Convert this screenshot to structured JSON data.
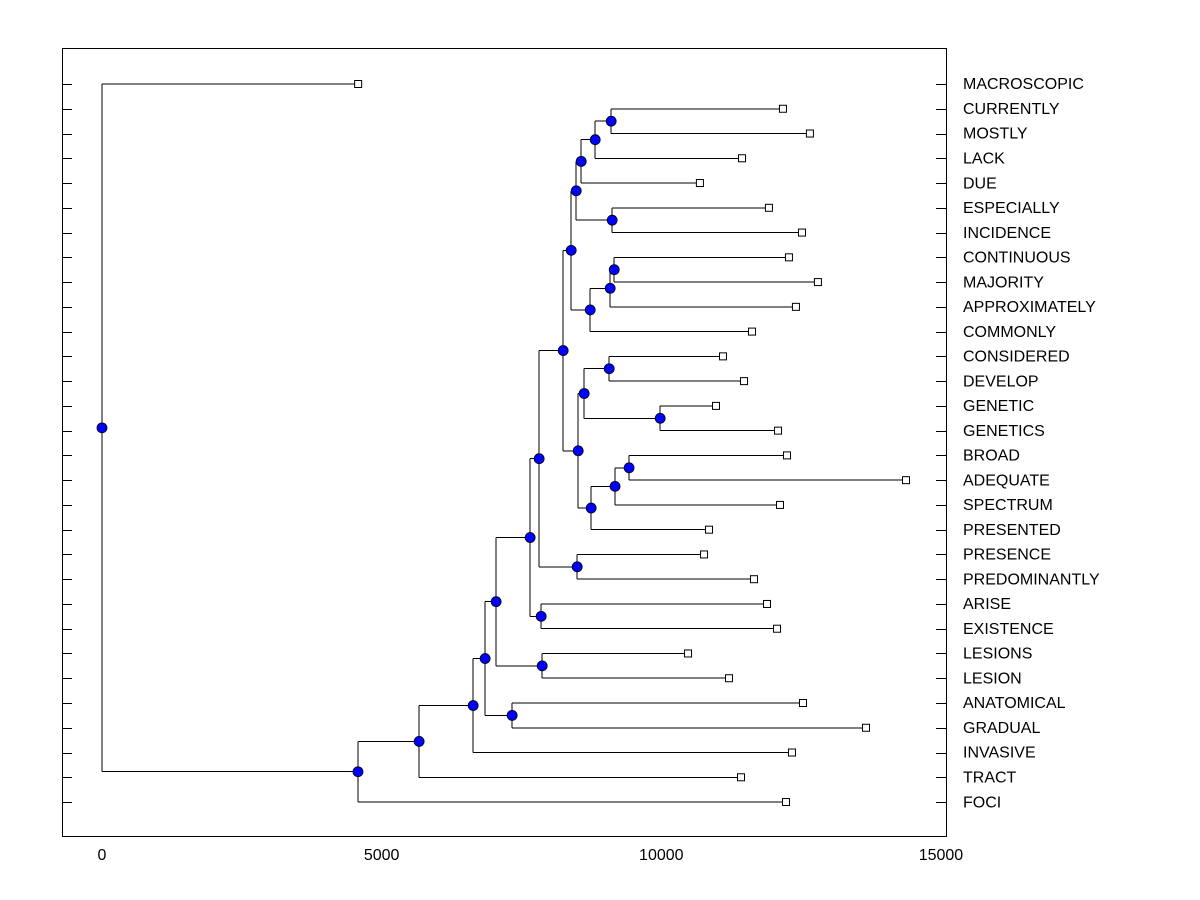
{
  "chart_data": {
    "type": "dendrogram",
    "node_color": "#0000ff",
    "leaf_color": "#ffffff",
    "line_color": "#000000",
    "xlim": [
      -715,
      15090
    ],
    "xticks": [
      0,
      5000,
      10000,
      15000
    ],
    "tree": {
      "value": 0,
      "children": [
        {
          "label": "MACROSCOPIC",
          "value": 4580
        },
        {
          "value": 4577,
          "children": [
            {
              "value": 5670,
              "children": [
                {
                  "value": 6636,
                  "children": [
                    {
                      "value": 6850,
                      "children": [
                        {
                          "value": 7047,
                          "children": [
                            {
                              "value": 7655,
                              "children": [
                                {
                                  "value": 7816,
                                  "children": [
                                    {
                                      "value": 8246,
                                      "children": [
                                        {
                                          "value": 8389,
                                          "children": [
                                            {
                                              "value": 8479,
                                              "children": [
                                                {
                                                  "value": 8568,
                                                  "children": [
                                                    {
                                                      "value": 8818,
                                                      "children": [
                                                        {
                                                          "value": 9104,
                                                          "children": [
                                                            {
                                                              "label": "CURRENTLY",
                                                              "value": 12175
                                                            },
                                                            {
                                                              "label": "MOSTLY",
                                                              "value": 12657
                                                            }
                                                          ]
                                                        },
                                                        {
                                                          "label": "LACK",
                                                          "value": 11443
                                                        }
                                                      ]
                                                    },
                                                    {
                                                      "label": "DUE",
                                                      "value": 10690
                                                    }
                                                  ]
                                                },
                                                {
                                                  "value": 9122,
                                                  "children": [
                                                    {
                                                      "label": "ESPECIALLY",
                                                      "value": 11924
                                                    },
                                                    {
                                                      "label": "INCIDENCE",
                                                      "value": 12515
                                                    }
                                                  ]
                                                }
                                              ]
                                            },
                                            {
                                              "value": 8729,
                                              "children": [
                                                {
                                                  "value": 9086,
                                                  "children": [
                                                    {
                                                      "value": 9158,
                                                      "children": [
                                                        {
                                                          "label": "CONTINUOUS",
                                                          "value": 12282
                                                        },
                                                        {
                                                          "label": "MAJORITY",
                                                          "value": 12800
                                                        }
                                                      ]
                                                    },
                                                    {
                                                      "label": "APPROXIMATELY",
                                                      "value": 12407
                                                    }
                                                  ]
                                                },
                                                {
                                                  "label": "COMMONLY",
                                                  "value": 11622
                                                }
                                              ]
                                            }
                                          ]
                                        },
                                        {
                                          "value": 8514,
                                          "children": [
                                            {
                                              "value": 8621,
                                              "children": [
                                                {
                                                  "value": 9068,
                                                  "children": [
                                                    {
                                                      "label": "CONSIDERED",
                                                      "value": 11103
                                                    },
                                                    {
                                                      "label": "DEVELOP",
                                                      "value": 11479
                                                    }
                                                  ]
                                                },
                                                {
                                                  "value": 9980,
                                                  "children": [
                                                    {
                                                      "label": "GENETIC",
                                                      "value": 10978
                                                    },
                                                    {
                                                      "label": "GENETICS",
                                                      "value": 12087
                                                    }
                                                  ]
                                                }
                                              ]
                                            },
                                            {
                                              "value": 8746,
                                              "children": [
                                                {
                                                  "value": 9173,
                                                  "children": [
                                                    {
                                                      "value": 9424,
                                                      "children": [
                                                        {
                                                          "label": "BROAD",
                                                          "value": 12247
                                                        },
                                                        {
                                                          "label": "ADEQUATE",
                                                          "value": 14375
                                                        }
                                                      ]
                                                    },
                                                    {
                                                      "label": "SPECTRUM",
                                                      "value": 12122
                                                    }
                                                  ]
                                                },
                                                {
                                                  "label": "PRESENTED",
                                                  "value": 10853
                                                }
                                              ]
                                            }
                                          ]
                                        }
                                      ]
                                    },
                                    {
                                      "value": 8496,
                                      "children": [
                                        {
                                          "label": "PRESENCE",
                                          "value": 10764
                                        },
                                        {
                                          "label": "PREDOMINANTLY",
                                          "value": 11657
                                        }
                                      ]
                                    }
                                  ]
                                },
                                {
                                  "value": 7852,
                                  "children": [
                                    {
                                      "label": "ARISE",
                                      "value": 11890
                                    },
                                    {
                                      "label": "EXISTENCE",
                                      "value": 12069
                                    }
                                  ]
                                }
                              ]
                            },
                            {
                              "value": 7870,
                              "children": [
                                {
                                  "label": "LESIONS",
                                  "value": 10478
                                },
                                {
                                  "label": "LESION",
                                  "value": 11210
                                }
                              ]
                            }
                          ]
                        },
                        {
                          "value": 7333,
                          "children": [
                            {
                              "label": "ANATOMICAL",
                              "value": 12533
                            },
                            {
                              "label": "GRADUAL",
                              "value": 13660
                            }
                          ]
                        }
                      ]
                    },
                    {
                      "label": "INVASIVE",
                      "value": 12336
                    }
                  ]
                },
                {
                  "label": "TRACT",
                  "value": 11425
                }
              ]
            },
            {
              "label": "FOCI",
              "value": 12229
            }
          ]
        }
      ]
    }
  }
}
